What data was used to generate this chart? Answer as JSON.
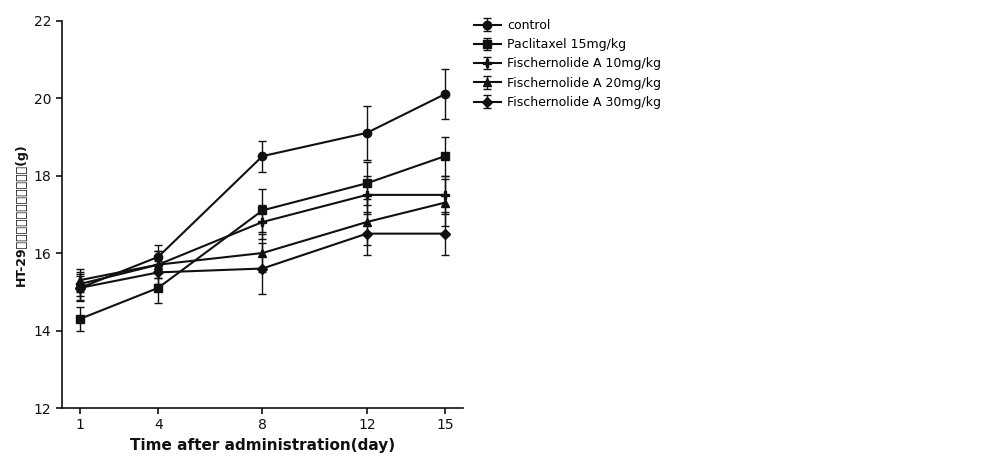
{
  "x": [
    1,
    4,
    8,
    12,
    15
  ],
  "series": [
    {
      "label": "control",
      "y": [
        15.1,
        15.9,
        18.5,
        19.1,
        20.1
      ],
      "yerr": [
        0.35,
        0.3,
        0.4,
        0.7,
        0.65
      ],
      "marker": "o",
      "markersize": 6
    },
    {
      "label": "Paclitaxel 15mg/kg",
      "y": [
        14.3,
        15.1,
        17.1,
        17.8,
        18.5
      ],
      "yerr": [
        0.3,
        0.4,
        0.55,
        0.55,
        0.5
      ],
      "marker": "s",
      "markersize": 6
    },
    {
      "label": "Fischernolide A 10mg/kg",
      "y": [
        15.2,
        15.7,
        16.8,
        17.5,
        17.5
      ],
      "yerr": [
        0.3,
        0.35,
        0.45,
        0.5,
        0.5
      ],
      "marker": "P",
      "markersize": 6
    },
    {
      "label": "Fischernolide A 20mg/kg",
      "y": [
        15.3,
        15.7,
        16.0,
        16.8,
        17.3
      ],
      "yerr": [
        0.3,
        0.35,
        0.5,
        0.6,
        0.6
      ],
      "marker": "^",
      "markersize": 6
    },
    {
      "label": "Fischernolide A 30mg/kg",
      "y": [
        15.1,
        15.5,
        15.6,
        16.5,
        16.5
      ],
      "yerr": [
        0.3,
        0.3,
        0.65,
        0.55,
        0.55
      ],
      "marker": "D",
      "markersize": 5
    }
  ],
  "xlabel": "Time after administration(day)",
  "ylabel_lines": [
    "H",
    "T",
    "-",
    "2",
    "9",
    "异",
    "体",
    "移",
    "植",
    "瘤",
    "裸",
    "鼠",
    "模",
    "型",
    "体",
    "重",
    "(",
    "g",
    ")"
  ],
  "ylim": [
    12,
    22
  ],
  "yticks": [
    12,
    14,
    16,
    18,
    20,
    22
  ],
  "xticks": [
    1,
    4,
    8,
    12,
    15
  ],
  "star_annotations": [
    {
      "text": "**",
      "legend_idx": 3
    },
    {
      "text": "**",
      "legend_idx": 4
    }
  ],
  "background_color": "#ffffff",
  "line_color": "#111111",
  "linewidth": 1.5,
  "capsize": 3
}
